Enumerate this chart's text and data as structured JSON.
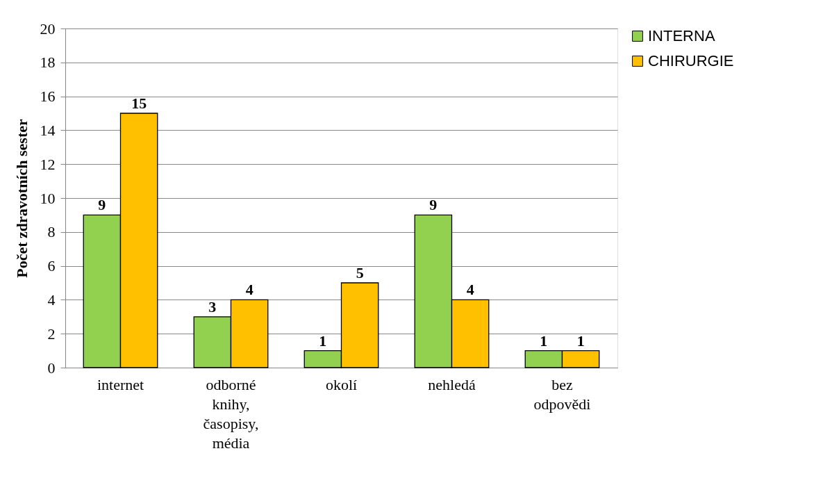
{
  "chart_data": {
    "type": "bar",
    "ylabel": "Počet zdravotních sester",
    "categories": [
      "internet",
      "odborné knihy, časopisy, média",
      "okolí",
      "nehledá",
      "bez odpovědi"
    ],
    "series": [
      {
        "name": "INTERNA",
        "color": "#92d050",
        "values": [
          9,
          3,
          1,
          9,
          1
        ]
      },
      {
        "name": "CHIRURGIE",
        "color": "#ffc000",
        "values": [
          15,
          4,
          5,
          4,
          1
        ]
      }
    ],
    "ylim": [
      0,
      20
    ],
    "yticks": [
      0,
      2,
      4,
      6,
      8,
      10,
      12,
      14,
      16,
      18,
      20
    ],
    "grid": "y",
    "legend": "right",
    "data_labels": true
  }
}
